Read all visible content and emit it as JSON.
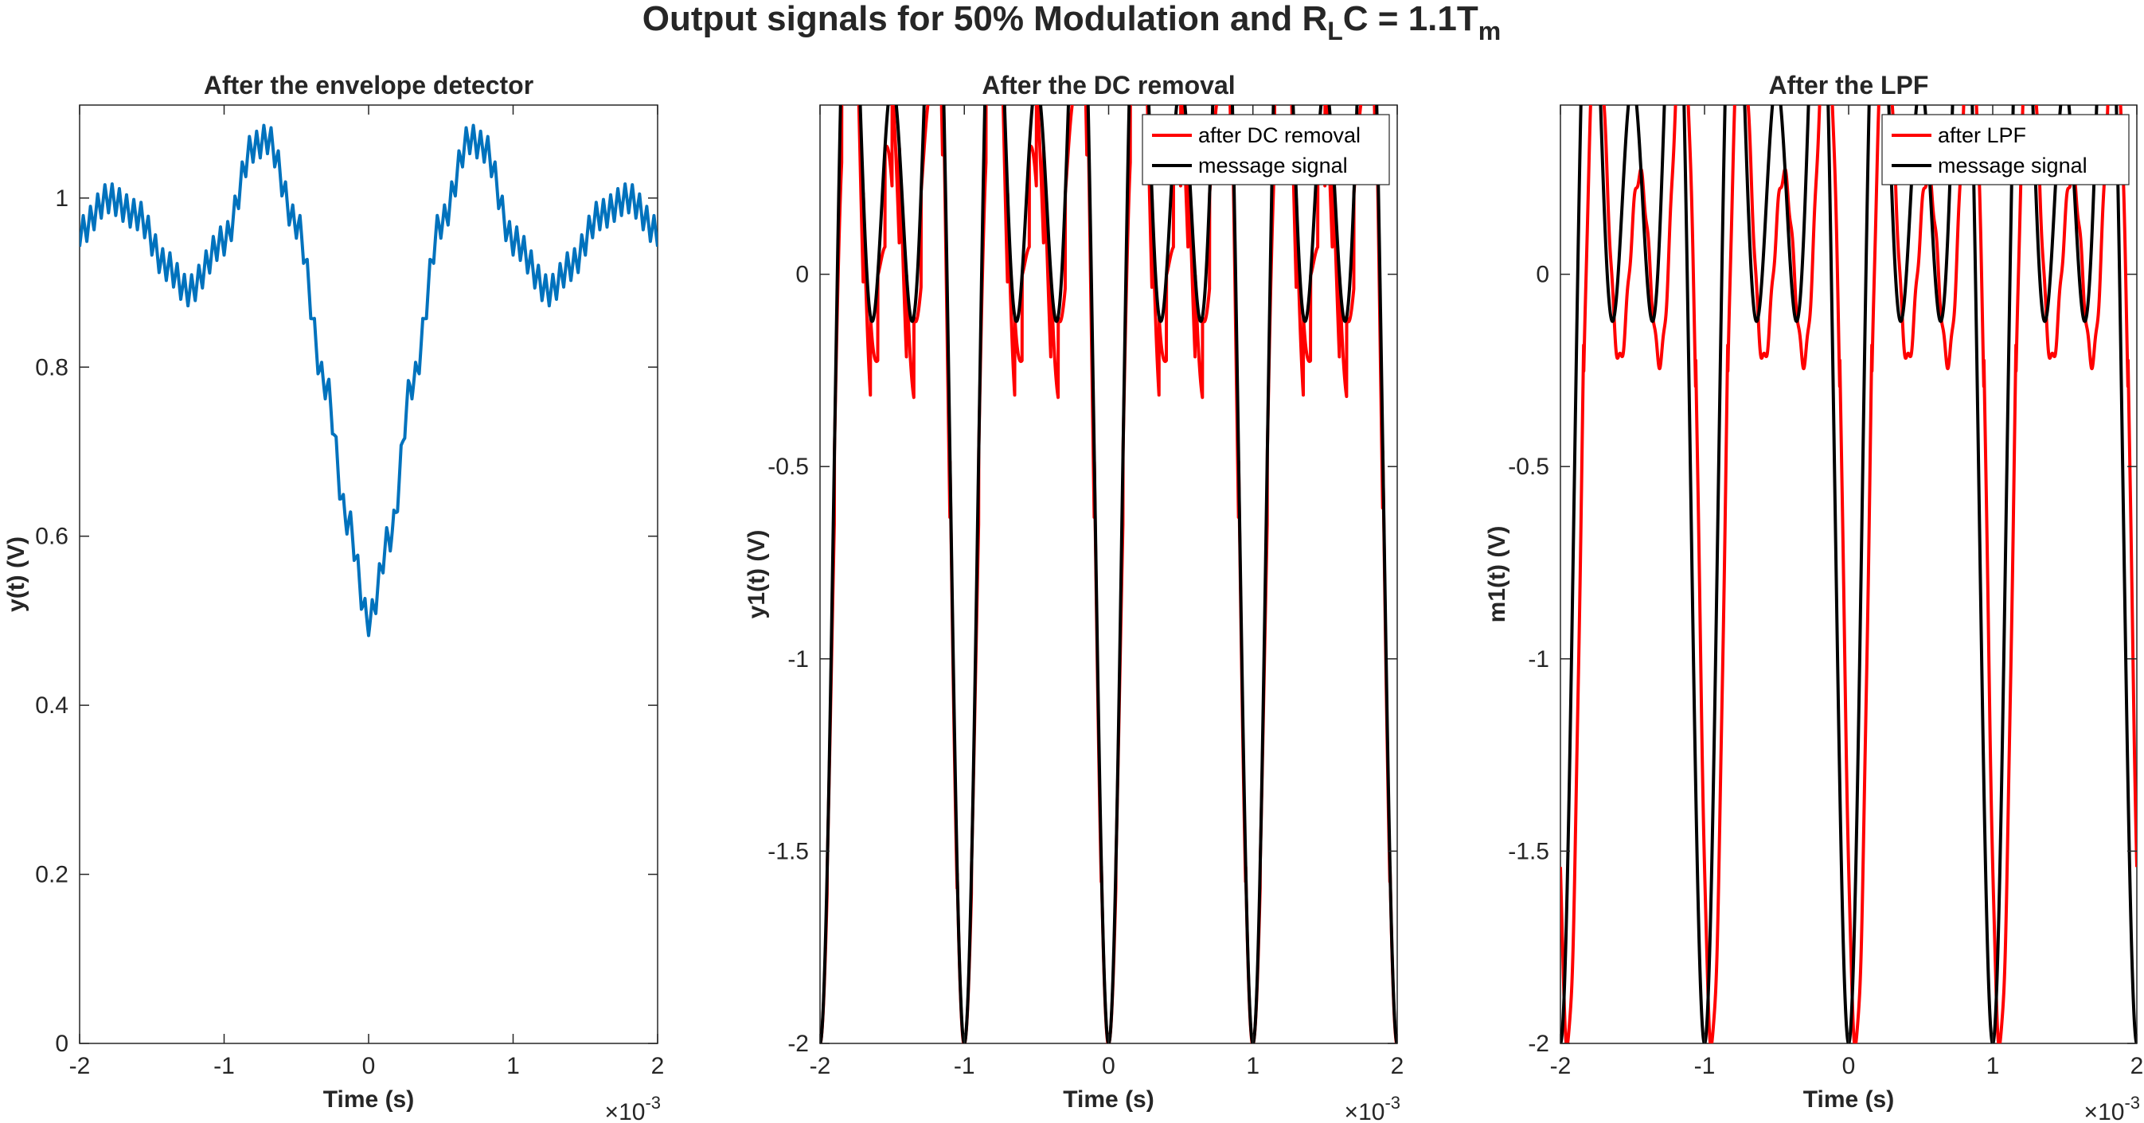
{
  "figure_title": {
    "prefix": "Output signals for 50% Modulation and R",
    "sub1": "L",
    "middle": "C = 1.1T",
    "sub2": "m"
  },
  "colors": {
    "blue": "#0072BD",
    "red": "#FF0000",
    "black": "#000000",
    "axis": "#262626"
  },
  "chart_data": [
    {
      "type": "line",
      "title": "After the envelope detector",
      "xlabel": "Time (s)",
      "ylabel": "y(t) (V)",
      "x_exponent_label": "×10",
      "x_exponent": "-3",
      "xlim": [
        -2,
        2
      ],
      "ylim": [
        0,
        1.11
      ],
      "xticks": [
        -2,
        -1,
        0,
        1,
        2
      ],
      "yticks": [
        0,
        0.2,
        0.4,
        0.6,
        0.8,
        1
      ],
      "legend": null,
      "series": [
        {
          "color": "#0072BD",
          "x_points": [
            -2.0,
            -1.8,
            -1.6,
            -1.4,
            -1.25,
            -1.0,
            -0.8,
            -0.7,
            -0.5,
            -0.3,
            -0.15,
            0.0,
            0.15,
            0.3,
            0.5,
            0.7,
            0.8,
            1.0,
            1.25,
            1.4,
            1.6,
            1.8,
            2.0
          ],
          "y_points": [
            0.96,
            1.0,
            0.98,
            0.92,
            0.89,
            0.95,
            1.06,
            1.07,
            0.97,
            0.78,
            0.62,
            0.5,
            0.6,
            0.78,
            0.97,
            1.07,
            1.06,
            0.95,
            0.89,
            0.92,
            0.98,
            1.0,
            0.96
          ],
          "ripple_amplitude": 0.035,
          "ripple_period_ms": 0.05
        }
      ]
    },
    {
      "type": "line",
      "title": "After the DC removal",
      "xlabel": "Time (s)",
      "ylabel": "y1(t) (V)",
      "x_exponent_label": "×10",
      "x_exponent": "-3",
      "xlim": [
        -2,
        2
      ],
      "ylim": [
        -2,
        0.44
      ],
      "xticks": [
        -2,
        -1,
        0,
        1,
        2
      ],
      "yticks": [
        -2,
        -1.5,
        -1,
        -0.5,
        0
      ],
      "legend": {
        "location": "top-right",
        "entries": [
          "after DC removal",
          "message signal"
        ]
      },
      "series": [
        {
          "name": "after DC removal",
          "color": "#FF0000",
          "envelope": "message",
          "ripple_depth_fraction": 0.9,
          "ripple_period_ms": 0.05
        },
        {
          "name": "message signal",
          "color": "#000000",
          "function": "sinc-sum",
          "cos_frequencies_hz": [
            1000,
            2000,
            3000
          ],
          "cos_weights": [
            -0.55,
            -0.75,
            -0.7
          ]
        }
      ]
    },
    {
      "type": "line",
      "title": "After the LPF",
      "xlabel": "Time (s)",
      "ylabel": "m1(t) (V)",
      "x_exponent_label": "×10",
      "x_exponent": "-3",
      "xlim": [
        -2,
        2
      ],
      "ylim": [
        -2,
        0.44
      ],
      "xticks": [
        -2,
        -1,
        0,
        1,
        2
      ],
      "yticks": [
        -2,
        -1.5,
        -1,
        -0.5,
        0
      ],
      "legend": {
        "location": "top-right",
        "entries": [
          "after LPF",
          "message signal"
        ]
      },
      "series": [
        {
          "name": "after LPF",
          "color": "#FF0000",
          "envelope": "message",
          "offset": -0.13,
          "delay_ms": 0.05,
          "ripple_amplitude": 0.02,
          "ripple_period_ms": 0.05
        },
        {
          "name": "message signal",
          "color": "#000000",
          "function": "sinc-sum",
          "cos_frequencies_hz": [
            1000,
            2000,
            3000
          ],
          "cos_weights": [
            -0.55,
            -0.75,
            -0.7
          ]
        }
      ]
    }
  ]
}
